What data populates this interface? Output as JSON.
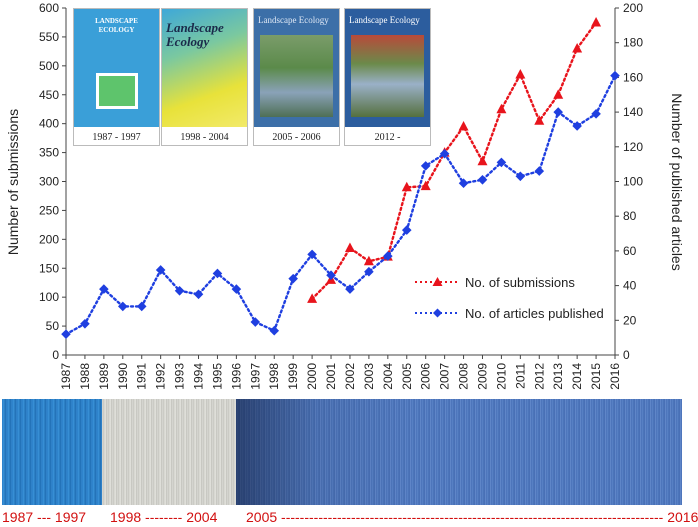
{
  "chart_data": {
    "type": "line",
    "categories": [
      "1987",
      "1988",
      "1989",
      "1990",
      "1991",
      "1992",
      "1993",
      "1994",
      "1995",
      "1996",
      "1997",
      "1998",
      "1999",
      "2000",
      "2001",
      "2002",
      "2003",
      "2004",
      "2005",
      "2006",
      "2007",
      "2008",
      "2009",
      "2010",
      "2011",
      "2012",
      "2013",
      "2014",
      "2015",
      "2016"
    ],
    "ylabel_left": "Number of submissions",
    "ylabel_right": "Number of published articles",
    "ylim_left": [
      0,
      600
    ],
    "ylim_right": [
      0,
      200
    ],
    "yticks_left": [
      0,
      50,
      100,
      150,
      200,
      250,
      300,
      350,
      400,
      450,
      500,
      550,
      600
    ],
    "yticks_right": [
      0,
      20,
      40,
      60,
      80,
      100,
      120,
      140,
      160,
      180,
      200
    ],
    "legend_position": "center-right",
    "series": [
      {
        "name": "No. of submissions",
        "axis": "left",
        "color": "#e8141c",
        "marker": "triangle",
        "line_style": "dotted",
        "values": [
          null,
          null,
          null,
          null,
          null,
          null,
          null,
          null,
          null,
          null,
          null,
          null,
          null,
          97,
          130,
          185,
          162,
          170,
          290,
          292,
          350,
          395,
          335,
          425,
          485,
          405,
          450,
          530,
          575,
          null
        ]
      },
      {
        "name": "No. of articles published",
        "axis": "right",
        "color": "#1f3fe0",
        "marker": "diamond",
        "line_style": "dotted",
        "values": [
          12,
          18,
          38,
          28,
          28,
          49,
          37,
          35,
          47,
          38,
          19,
          14,
          44,
          58,
          46,
          38,
          48,
          57,
          72,
          109,
          116,
          99,
          101,
          111,
          103,
          106,
          140,
          132,
          139,
          161
        ]
      }
    ]
  },
  "covers": [
    {
      "caption": "1987 - 1997",
      "title": "LANDSCAPE ECOLOGY",
      "bg": "#3a9fd8"
    },
    {
      "caption": "1998 - 2004",
      "title": "Landscape Ecology",
      "bg": "#e8e23a"
    },
    {
      "caption": "2005 - 2006",
      "title": "Landscape Ecology",
      "bg": "#3c6fa8"
    },
    {
      "caption": "2012 -",
      "title": "Landscape Ecology",
      "bg": "#2c5d9e"
    }
  ],
  "shelf_labels": {
    "p1": "1987 --- 1997",
    "p2": "1998 -------- 2004",
    "p3": "2005 ---------------------------------------------------------------------------------- 2016"
  },
  "colors": {
    "submissions": "#e8141c",
    "published": "#1f3fe0",
    "period_labels": "#d21010"
  }
}
